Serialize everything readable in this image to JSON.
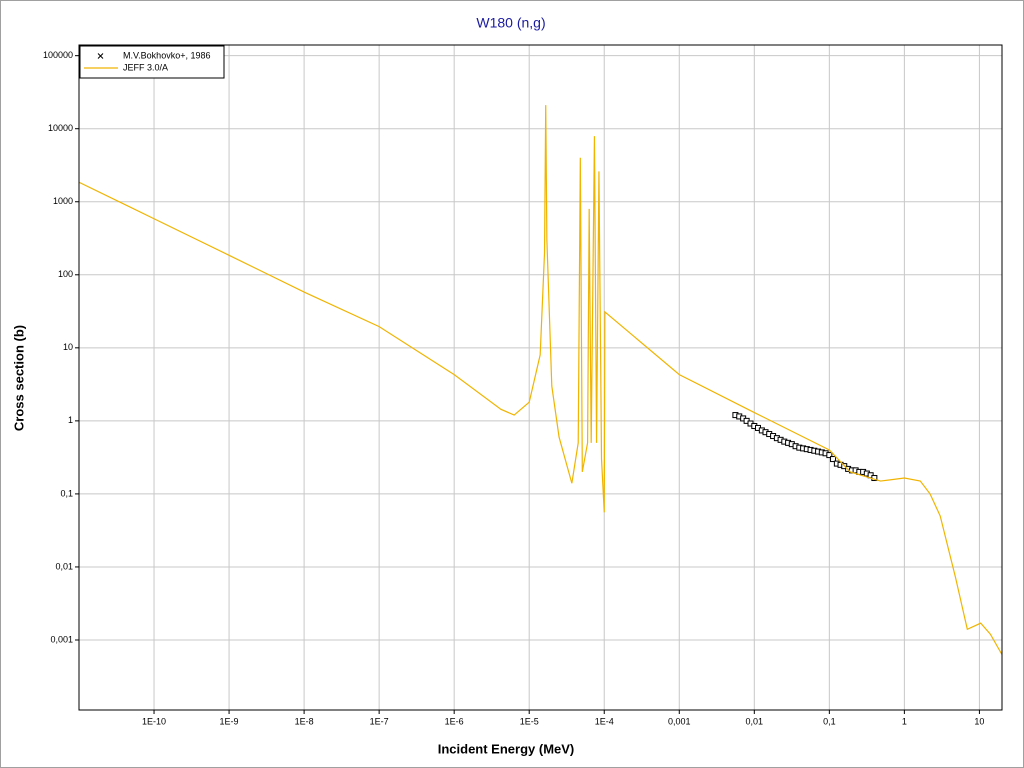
{
  "chart_data": {
    "type": "line",
    "title": "W180 (n,g)",
    "x_label": "Incident Energy (MeV)",
    "y_label": "Cross section (b)",
    "xscale": "log",
    "yscale": "log",
    "grid": true,
    "legend": "upper left",
    "xlim": [
      1e-11,
      20
    ],
    "ylim": [
      0.00011,
      140000
    ],
    "xticks": [
      {
        "value": 1e-10,
        "label": "1E-10"
      },
      {
        "value": 1e-09,
        "label": "1E-9"
      },
      {
        "value": 1e-08,
        "label": "1E-8"
      },
      {
        "value": 1e-07,
        "label": "1E-7"
      },
      {
        "value": 1e-06,
        "label": "1E-6"
      },
      {
        "value": 1e-05,
        "label": "1E-5"
      },
      {
        "value": 0.0001,
        "label": "1E-4"
      },
      {
        "value": 0.001,
        "label": "0,001"
      },
      {
        "value": 0.01,
        "label": "0,01"
      },
      {
        "value": 0.1,
        "label": "0,1"
      },
      1,
      10
    ],
    "yticks": [
      {
        "value": 0.001,
        "label": "0,001"
      },
      {
        "value": 0.01,
        "label": "0,01"
      },
      {
        "value": 0.1,
        "label": "0,1"
      },
      1,
      10,
      100,
      1000,
      10000,
      100000
    ],
    "series": [
      {
        "name": "M.V.Bokhovko+, 1986",
        "type": "scatter",
        "color": "#000000",
        "x": [
          0.0056,
          0.0063,
          0.0071,
          0.0079,
          0.0089,
          0.01,
          0.0112,
          0.0126,
          0.0141,
          0.0158,
          0.0178,
          0.02,
          0.0224,
          0.0251,
          0.0282,
          0.0316,
          0.0355,
          0.0398,
          0.0447,
          0.0501,
          0.0562,
          0.0631,
          0.0708,
          0.0794,
          0.0891,
          0.1,
          0.112,
          0.126,
          0.141,
          0.158,
          0.178,
          0.2,
          0.224,
          0.251,
          0.282,
          0.316,
          0.355,
          0.398
        ],
        "values": [
          1.2,
          1.15,
          1.08,
          1.0,
          0.92,
          0.85,
          0.8,
          0.74,
          0.7,
          0.66,
          0.62,
          0.58,
          0.55,
          0.52,
          0.5,
          0.48,
          0.45,
          0.43,
          0.42,
          0.41,
          0.4,
          0.39,
          0.38,
          0.37,
          0.36,
          0.34,
          0.3,
          0.26,
          0.25,
          0.24,
          0.22,
          0.21,
          0.21,
          0.2,
          0.2,
          0.19,
          0.18,
          0.165
        ]
      },
      {
        "name": "JEFF 3.0/A",
        "type": "line",
        "color": "#f0b400",
        "x": [
          1e-11,
          1e-10,
          1e-09,
          1e-08,
          1e-07,
          1e-06,
          4.2e-06,
          6.3e-06,
          1e-05,
          1.4e-05,
          1.6e-05,
          1.66e-05,
          1.72e-05,
          2e-05,
          2.5e-05,
          3.7e-05,
          4.5e-05,
          4.8e-05,
          5.1e-05,
          6e-05,
          6.3e-05,
          6.7e-05,
          7.4e-05,
          7.9e-05,
          8.5e-05,
          9.2e-05,
          0.0001,
          0.000102,
          0.001,
          0.01,
          0.1,
          0.19,
          0.48,
          1,
          1.63,
          2.2,
          3,
          4.8,
          6.9,
          10.4,
          14,
          20
        ],
        "values": [
          1850,
          585,
          185,
          58,
          19.5,
          4.3,
          1.44,
          1.2,
          1.8,
          8,
          200,
          21000,
          300,
          3,
          0.6,
          0.14,
          0.5,
          4000,
          0.2,
          0.5,
          800,
          0.5,
          7900,
          0.5,
          2600,
          0.3,
          0.056,
          31,
          4.3,
          1.3,
          0.4,
          0.2,
          0.15,
          0.165,
          0.15,
          0.1,
          0.05,
          0.0072,
          0.0014,
          0.0017,
          0.0012,
          0.00063
        ]
      }
    ]
  }
}
